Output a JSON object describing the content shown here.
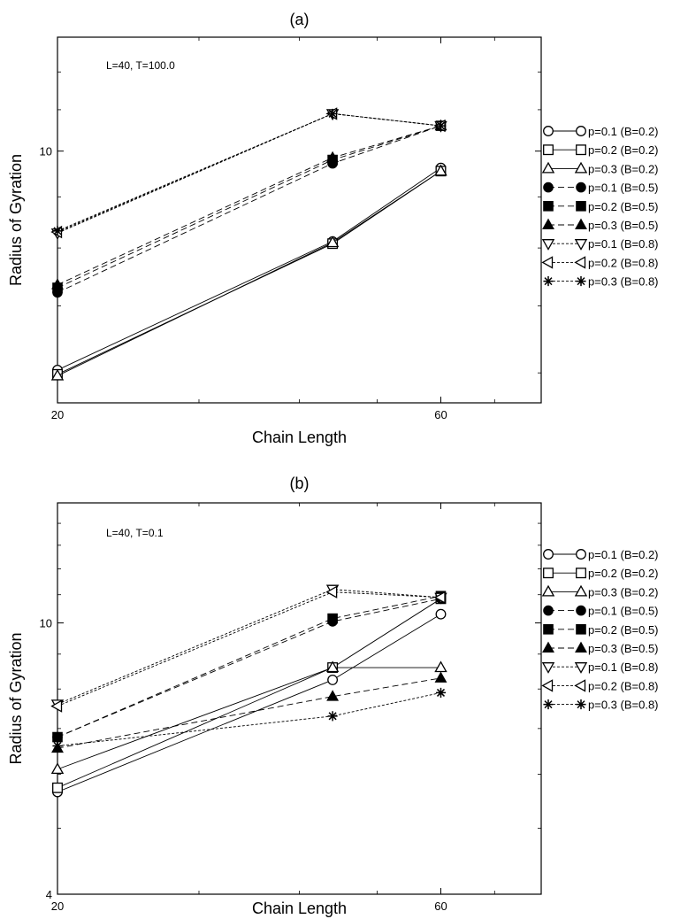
{
  "chart_data": [
    {
      "type": "line",
      "title": "(a)",
      "annotation": "L=40, T=100.0",
      "xlabel": "Chain Length",
      "ylabel": "Radius of Gyration",
      "x_scale": "log",
      "y_scale": "log",
      "xlim": [
        20,
        80
      ],
      "ylim": [
        5.6,
        13.0
      ],
      "x_ticks": [
        20,
        60
      ],
      "y_ticks": [
        10
      ],
      "x": [
        20,
        44,
        60
      ],
      "series": [
        {
          "name": "p=0.1 (B=0.2)",
          "marker": "circle-open",
          "line": "solid",
          "values": [
            6.04,
            8.12,
            9.62
          ]
        },
        {
          "name": "p=0.2 (B=0.2)",
          "marker": "square-open",
          "line": "solid",
          "values": [
            5.98,
            8.08,
            9.55
          ]
        },
        {
          "name": "p=0.3 (B=0.2)",
          "marker": "triangle-up-open",
          "line": "solid",
          "values": [
            5.96,
            8.1,
            9.55
          ]
        },
        {
          "name": "p=0.1 (B=0.5)",
          "marker": "circle-filled",
          "line": "dashed",
          "values": [
            7.22,
            9.72,
            10.6
          ]
        },
        {
          "name": "p=0.2 (B=0.5)",
          "marker": "square-filled",
          "line": "dashed",
          "values": [
            7.3,
            9.8,
            10.6
          ]
        },
        {
          "name": "p=0.3 (B=0.5)",
          "marker": "triangle-up-filled",
          "line": "dashed",
          "values": [
            7.35,
            9.85,
            10.6
          ]
        },
        {
          "name": "p=0.1 (B=0.8)",
          "marker": "triangle-down-open",
          "line": "dotted",
          "values": [
            8.28,
            10.9,
            10.6
          ]
        },
        {
          "name": "p=0.2 (B=0.8)",
          "marker": "triangle-left-open",
          "line": "dotted",
          "values": [
            8.3,
            10.9,
            10.6
          ]
        },
        {
          "name": "p=0.3 (B=0.8)",
          "marker": "asterisk",
          "line": "dotted",
          "values": [
            8.32,
            10.9,
            10.6
          ]
        }
      ]
    },
    {
      "type": "line",
      "title": "(b)",
      "annotation": "L=40, T=0.1",
      "xlabel": "Chain Length",
      "ylabel": "Radius of Gyration",
      "x_scale": "log",
      "y_scale": "log",
      "xlim": [
        20,
        80
      ],
      "ylim": [
        4.0,
        15.0
      ],
      "x_ticks": [
        20,
        60
      ],
      "y_ticks": [
        4,
        10
      ],
      "x": [
        20,
        44,
        60
      ],
      "series": [
        {
          "name": "p=0.1 (B=0.2)",
          "marker": "circle-open",
          "line": "solid",
          "values": [
            5.65,
            8.25,
            10.3
          ]
        },
        {
          "name": "p=0.2 (B=0.2)",
          "marker": "square-open",
          "line": "solid",
          "values": [
            5.73,
            8.6,
            10.85
          ]
        },
        {
          "name": "p=0.3 (B=0.2)",
          "marker": "triangle-up-open",
          "line": "solid",
          "values": [
            6.1,
            8.6,
            8.6
          ]
        },
        {
          "name": "p=0.1 (B=0.5)",
          "marker": "circle-filled",
          "line": "dashed",
          "values": [
            6.8,
            10.05,
            10.85
          ]
        },
        {
          "name": "p=0.2 (B=0.5)",
          "marker": "square-filled",
          "line": "dashed",
          "values": [
            6.8,
            10.15,
            10.95
          ]
        },
        {
          "name": "p=0.3 (B=0.5)",
          "marker": "triangle-up-filled",
          "line": "dashed",
          "values": [
            6.55,
            7.8,
            8.3
          ]
        },
        {
          "name": "p=0.1 (B=0.8)",
          "marker": "triangle-down-open",
          "line": "dotted",
          "values": [
            7.6,
            11.2,
            10.9
          ]
        },
        {
          "name": "p=0.2 (B=0.8)",
          "marker": "triangle-left-open",
          "line": "dotted",
          "values": [
            7.55,
            11.1,
            10.9
          ]
        },
        {
          "name": "p=0.3 (B=0.8)",
          "marker": "asterisk",
          "line": "dotted",
          "values": [
            6.6,
            7.3,
            7.9
          ]
        }
      ]
    }
  ]
}
